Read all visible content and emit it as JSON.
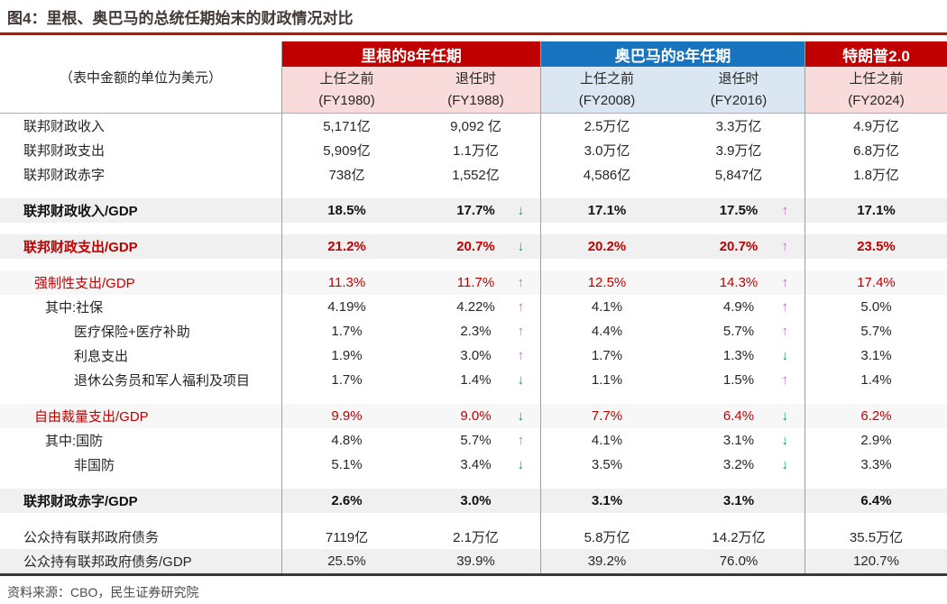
{
  "title": "图4：里根、奥巴马的总统任期始末的财政情况对比",
  "unit_note": "（表中金额的单位为美元）",
  "source": "资料来源：CBO，民生证券研究院",
  "colors": {
    "reagan_header_bg": "#C00000",
    "obama_header_bg": "#1874BE",
    "reagan_subheader_bg": "#F8DBDA",
    "obama_subheader_bg": "#DAE6F2",
    "red_text": "#C00000",
    "up_arrow": "#CB66CE",
    "down_arrow": "#00A650",
    "band_row_bg": "#F0F0F0",
    "title_underline": "#8F261B"
  },
  "groups": [
    {
      "label": "里根的8年任期",
      "theme": "red",
      "cols": [
        {
          "period": "上任之前",
          "fy": "(FY1980)"
        },
        {
          "period": "退任时",
          "fy": "(FY1988)"
        }
      ]
    },
    {
      "label": "奥巴马的8年任期",
      "theme": "blue",
      "cols": [
        {
          "period": "上任之前",
          "fy": "(FY2008)"
        },
        {
          "period": "退任时",
          "fy": "(FY2016)"
        }
      ]
    },
    {
      "label": "特朗普2.0",
      "theme": "red",
      "cols": [
        {
          "period": "上任之前",
          "fy": "(FY2024)"
        }
      ]
    }
  ],
  "table": {
    "column_keys": [
      "FY1980",
      "FY1988",
      "FY2008",
      "FY2016",
      "FY2024"
    ],
    "rows": [
      {
        "label": "联邦财政收入",
        "indent": 0,
        "style": "plain",
        "gap": false,
        "cells": [
          {
            "v": "5,171亿"
          },
          {
            "v": "9,092 亿"
          },
          {
            "v": "2.5万亿"
          },
          {
            "v": "3.3万亿"
          },
          {
            "v": "4.9万亿"
          }
        ]
      },
      {
        "label": "联邦财政支出",
        "indent": 0,
        "style": "plain",
        "gap": false,
        "cells": [
          {
            "v": "5,909亿"
          },
          {
            "v": "1.1万亿"
          },
          {
            "v": "3.0万亿"
          },
          {
            "v": "3.9万亿"
          },
          {
            "v": "6.8万亿"
          }
        ]
      },
      {
        "label": "联邦财政赤字",
        "indent": 0,
        "style": "plain",
        "gap": false,
        "cells": [
          {
            "v": "738亿"
          },
          {
            "v": "1,552亿"
          },
          {
            "v": "4,586亿"
          },
          {
            "v": "5,847亿"
          },
          {
            "v": "1.8万亿"
          }
        ]
      },
      {
        "label": "联邦财政收入/GDP",
        "indent": 0,
        "style": "bold",
        "gap": true,
        "band": true,
        "cells": [
          {
            "v": "18.5%"
          },
          {
            "v": "17.7%",
            "arrow": "down"
          },
          {
            "v": "17.1%"
          },
          {
            "v": "17.5%",
            "arrow": "up"
          },
          {
            "v": "17.1%"
          }
        ]
      },
      {
        "label": "联邦财政支出/GDP",
        "indent": 0,
        "style": "boldred",
        "gap": true,
        "band": true,
        "cells": [
          {
            "v": "21.2%"
          },
          {
            "v": "20.7%",
            "arrow": "down"
          },
          {
            "v": "20.2%"
          },
          {
            "v": "20.7%",
            "arrow": "up"
          },
          {
            "v": "23.5%"
          }
        ]
      },
      {
        "label": "强制性支出/GDP",
        "indent": 1,
        "style": "red",
        "gap": true,
        "band2": true,
        "cells": [
          {
            "v": "11.3%"
          },
          {
            "v": "11.7%",
            "arrow": "up"
          },
          {
            "v": "12.5%"
          },
          {
            "v": "14.3%",
            "arrow": "up"
          },
          {
            "v": "17.4%"
          }
        ]
      },
      {
        "label": "其中:社保",
        "indent": 2,
        "style": "plain",
        "gap": false,
        "cells": [
          {
            "v": "4.19%"
          },
          {
            "v": "4.22%",
            "arrow": "up"
          },
          {
            "v": "4.1%"
          },
          {
            "v": "4.9%",
            "arrow": "up"
          },
          {
            "v": "5.0%"
          }
        ]
      },
      {
        "label": "医疗保险+医疗补助",
        "indent": 3,
        "style": "plain",
        "gap": false,
        "cells": [
          {
            "v": "1.7%"
          },
          {
            "v": "2.3%",
            "arrow": "up"
          },
          {
            "v": "4.4%"
          },
          {
            "v": "5.7%",
            "arrow": "up"
          },
          {
            "v": "5.7%"
          }
        ]
      },
      {
        "label": "利息支出",
        "indent": 3,
        "style": "plain",
        "gap": false,
        "cells": [
          {
            "v": "1.9%"
          },
          {
            "v": "3.0%",
            "arrow": "up"
          },
          {
            "v": "1.7%"
          },
          {
            "v": "1.3%",
            "arrow": "down"
          },
          {
            "v": "3.1%"
          }
        ]
      },
      {
        "label": "退休公务员和军人福利及项目",
        "indent": 3,
        "style": "plain",
        "gap": false,
        "cells": [
          {
            "v": "1.7%"
          },
          {
            "v": "1.4%",
            "arrow": "down"
          },
          {
            "v": "1.1%"
          },
          {
            "v": "1.5%",
            "arrow": "up"
          },
          {
            "v": "1.4%"
          }
        ]
      },
      {
        "label": "自由裁量支出/GDP",
        "indent": 1,
        "style": "red",
        "gap": true,
        "band2": true,
        "cells": [
          {
            "v": "9.9%"
          },
          {
            "v": "9.0%",
            "arrow": "down"
          },
          {
            "v": "7.7%"
          },
          {
            "v": "6.4%",
            "arrow": "down"
          },
          {
            "v": "6.2%"
          }
        ]
      },
      {
        "label": "其中:国防",
        "indent": 2,
        "style": "plain",
        "gap": false,
        "cells": [
          {
            "v": "4.8%"
          },
          {
            "v": "5.7%",
            "arrow": "up"
          },
          {
            "v": "4.1%"
          },
          {
            "v": "3.1%",
            "arrow": "down"
          },
          {
            "v": "2.9%"
          }
        ]
      },
      {
        "label": "非国防",
        "indent": 3,
        "style": "plain",
        "gap": false,
        "cells": [
          {
            "v": "5.1%"
          },
          {
            "v": "3.4%",
            "arrow": "down"
          },
          {
            "v": "3.5%"
          },
          {
            "v": "3.2%",
            "arrow": "down"
          },
          {
            "v": "3.3%"
          }
        ]
      },
      {
        "label": "联邦财政赤字/GDP",
        "indent": 0,
        "style": "bold",
        "gap": true,
        "band": true,
        "cells": [
          {
            "v": "2.6%"
          },
          {
            "v": "3.0%"
          },
          {
            "v": "3.1%"
          },
          {
            "v": "3.1%"
          },
          {
            "v": "6.4%"
          }
        ]
      },
      {
        "label": "公众持有联邦政府债务",
        "indent": 0,
        "style": "plain",
        "gap": true,
        "cells": [
          {
            "v": "7119亿"
          },
          {
            "v": "2.1万亿"
          },
          {
            "v": "5.8万亿"
          },
          {
            "v": "14.2万亿"
          },
          {
            "v": "35.5万亿"
          }
        ]
      },
      {
        "label": "公众持有联邦政府债务/GDP",
        "indent": 0,
        "style": "plain",
        "gap": false,
        "band": true,
        "cells": [
          {
            "v": "25.5%"
          },
          {
            "v": "39.9%"
          },
          {
            "v": "39.2%"
          },
          {
            "v": "76.0%"
          },
          {
            "v": "120.7%"
          }
        ]
      }
    ]
  }
}
